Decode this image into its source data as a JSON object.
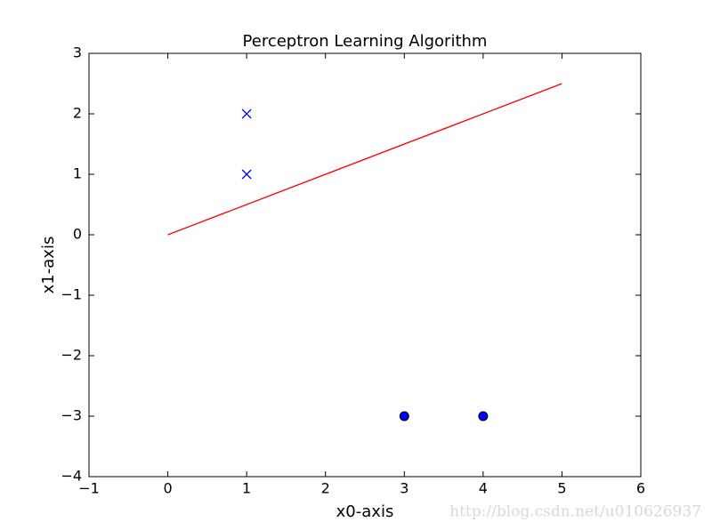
{
  "chart_data": {
    "type": "scatter",
    "title": "Perceptron Learning Algorithm",
    "x_label": "x0-axis",
    "y_label": "x1-axis",
    "xlim": [
      -1,
      6
    ],
    "ylim": [
      -4,
      3
    ],
    "xticks": [
      {
        "value": -1,
        "label": "−1"
      },
      0,
      1,
      2,
      3,
      4,
      5,
      6
    ],
    "yticks": [
      {
        "value": -4,
        "label": "−4"
      },
      {
        "value": -3,
        "label": "−3"
      },
      {
        "value": -2,
        "label": "−2"
      },
      {
        "value": -1,
        "label": "−1"
      },
      0,
      1,
      2,
      3
    ],
    "series": [
      {
        "color": "#0000ff",
        "marker": "x",
        "x": [
          1,
          1
        ],
        "values": [
          2,
          1
        ]
      },
      {
        "color": "#0000ff",
        "marker": "o",
        "x": [
          3,
          4
        ],
        "values": [
          -3,
          -3
        ]
      },
      {
        "color": "#ff0000",
        "marker": "line",
        "x": [
          0,
          5
        ],
        "values": [
          0,
          2.5
        ]
      }
    ]
  },
  "watermark": "http://blog.csdn.net/u010626937"
}
